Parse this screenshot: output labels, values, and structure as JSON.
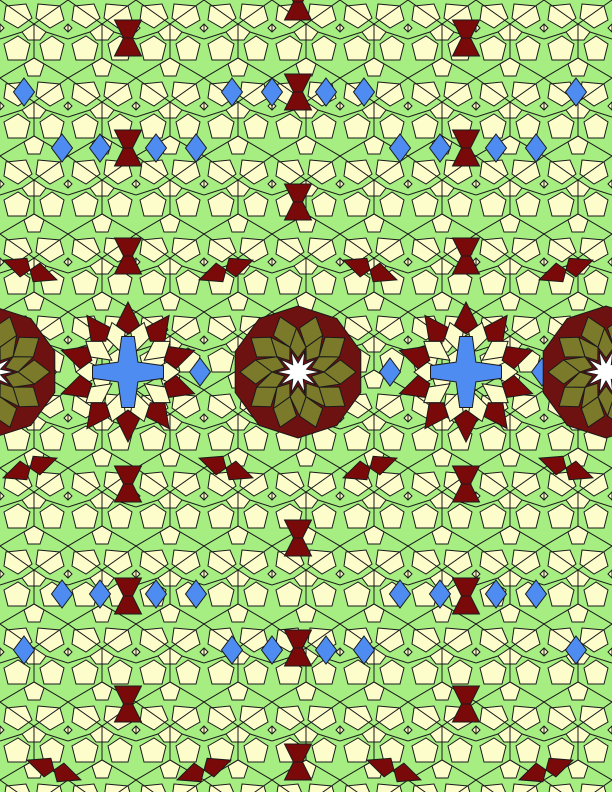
{
  "pattern": {
    "kind": "girih-style geometric tessellation",
    "palette": {
      "ground": "#a6ee82",
      "petal": "#fdfccb",
      "kite": "#7a0a0a",
      "diamond": "#4f8cf2",
      "rosette": "#7b7a2b",
      "rosette_ring": "#6e1111",
      "line": "#1a1a1a",
      "star": "#ffffff"
    },
    "motifs": {
      "rosette": {
        "points": 10,
        "ring_cells": 10
      },
      "blue_cross": {
        "arms": 4
      },
      "bowtie": {
        "wings": 2
      }
    }
  }
}
